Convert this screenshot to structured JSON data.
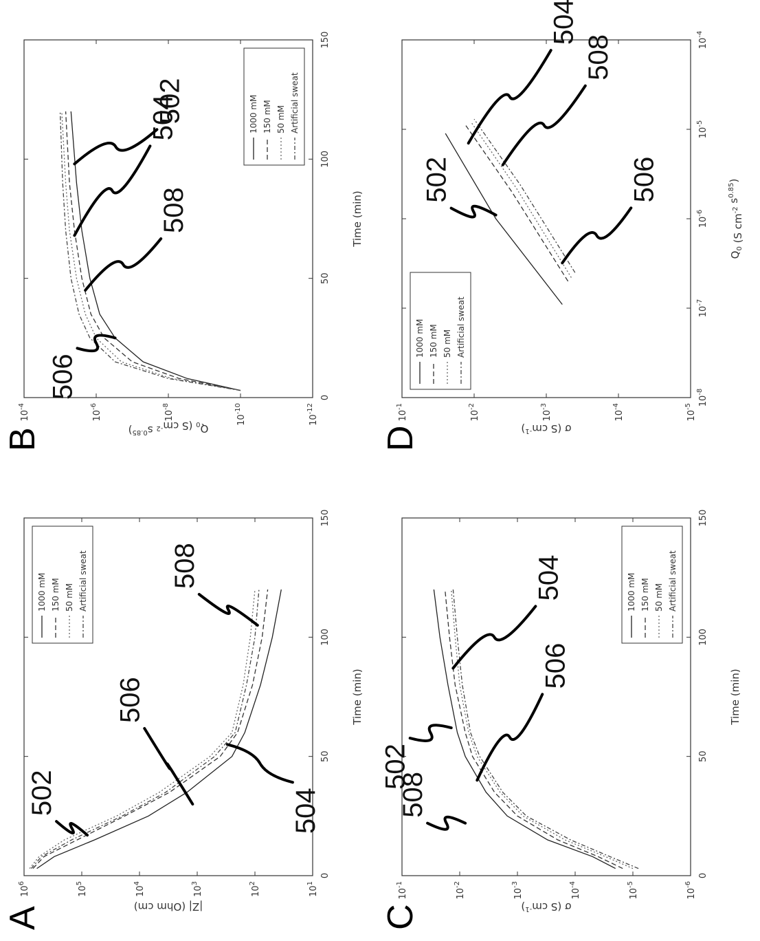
{
  "figure": {
    "panels": [
      {
        "letter": "A"
      },
      {
        "letter": "B"
      },
      {
        "letter": "C"
      },
      {
        "letter": "D"
      }
    ]
  },
  "chart_data": [
    {
      "panel": "A",
      "type": "line",
      "xlabel": "Time (min)",
      "ylabel": "|Z| (Ohm cm)",
      "xlim": [
        0,
        150
      ],
      "ylim": [
        10,
        1000000
      ],
      "y_scale": "log",
      "x_ticks": [
        "0",
        "50",
        "100",
        "150"
      ],
      "y_ticks": [
        "10^1",
        "10^2",
        "10^3",
        "10^4",
        "10^5",
        "10^6"
      ],
      "legend": [
        "1000 mM",
        "150 mM",
        "50 mM",
        "Artificial sweat"
      ],
      "legend_position": "top-right",
      "series": [
        {
          "name": "1000 mM",
          "x": [
            3,
            8,
            15,
            25,
            35,
            50,
            60,
            80,
            100,
            120
          ],
          "y": [
            600000,
            300000,
            60000,
            7000,
            1500,
            250,
            150,
            80,
            50,
            35
          ]
        },
        {
          "name": "150 mM",
          "x": [
            3,
            8,
            15,
            25,
            35,
            50,
            60,
            80,
            100,
            120
          ],
          "y": [
            700000,
            450000,
            120000,
            18000,
            3000,
            400,
            200,
            110,
            75,
            60
          ]
        },
        {
          "name": "50 mM",
          "x": [
            3,
            8,
            15,
            25,
            35,
            50,
            60,
            80,
            100,
            120
          ],
          "y": [
            800000,
            550000,
            200000,
            25000,
            4500,
            600,
            250,
            160,
            120,
            100
          ]
        },
        {
          "name": "Artificial sweat",
          "x": [
            3,
            8,
            15,
            25,
            35,
            50,
            60,
            80,
            100,
            120
          ],
          "y": [
            750000,
            500000,
            150000,
            20000,
            3500,
            500,
            220,
            140,
            100,
            85
          ]
        }
      ],
      "callouts": [
        "502",
        "506",
        "504",
        "508"
      ]
    },
    {
      "panel": "B",
      "type": "line",
      "xlabel": "Time (min)",
      "ylabel": "Q0 (S cm-2 s0.85)",
      "xlim": [
        0,
        150
      ],
      "ylim": [
        1e-12,
        0.0001
      ],
      "y_scale": "log",
      "x_ticks": [
        "0",
        "50",
        "100",
        "150"
      ],
      "y_ticks": [
        "10^-12",
        "10^-10",
        "10^-8",
        "10^-6",
        "10^-4"
      ],
      "legend": [
        "1000 mM",
        "150 mM",
        "50 mM",
        "Artificial sweat"
      ],
      "legend_position": "bottom-right",
      "series": [
        {
          "name": "1000 mM",
          "x": [
            3,
            8,
            15,
            25,
            35,
            50,
            70,
            90,
            120
          ],
          "y": [
            1e-10,
            3e-09,
            5e-08,
            3e-07,
            8e-07,
            1.5e-06,
            2.5e-06,
            3.5e-06,
            5e-06
          ]
        },
        {
          "name": "150 mM",
          "x": [
            3,
            8,
            15,
            25,
            35,
            50,
            70,
            90,
            120
          ],
          "y": [
            1e-10,
            5e-09,
            1e-07,
            6e-07,
            1.4e-06,
            2.5e-06,
            4e-06,
            5.5e-06,
            7e-06
          ]
        },
        {
          "name": "50 mM",
          "x": [
            3,
            8,
            15,
            25,
            35,
            50,
            70,
            90,
            120
          ],
          "y": [
            1e-10,
            8e-09,
            2e-07,
            1e-06,
            2e-06,
            3.5e-06,
            5.5e-06,
            7e-06,
            9e-06
          ]
        },
        {
          "name": "Artificial sweat",
          "x": [
            3,
            8,
            15,
            25,
            35,
            50,
            70,
            90,
            120
          ],
          "y": [
            1e-10,
            1e-08,
            3e-07,
            1.5e-06,
            3e-06,
            5e-06,
            7e-06,
            8.5e-06,
            1e-05
          ]
        }
      ],
      "callouts": [
        "506",
        "508",
        "504",
        "502"
      ]
    },
    {
      "panel": "C",
      "type": "line",
      "xlabel": "Time (min)",
      "ylabel": "σ (S cm-1)",
      "xlim": [
        0,
        150
      ],
      "ylim": [
        1e-06,
        0.1
      ],
      "y_scale": "log",
      "x_ticks": [
        "0",
        "50",
        "100",
        "150"
      ],
      "y_ticks": [
        "10^-6",
        "10^-5",
        "10^-4",
        "10^-3",
        "10^-2",
        "10^-1"
      ],
      "legend": [
        "1000 mM",
        "150 mM",
        "50 mM",
        "Artificial sweat"
      ],
      "legend_position": "bottom-right",
      "series": [
        {
          "name": "1000 mM",
          "x": [
            3,
            8,
            15,
            25,
            35,
            50,
            60,
            80,
            100,
            120
          ],
          "y": [
            2e-05,
            5e-05,
            0.0003,
            0.0015,
            0.0035,
            0.008,
            0.011,
            0.016,
            0.022,
            0.028
          ]
        },
        {
          "name": "150 mM",
          "x": [
            3,
            8,
            15,
            25,
            35,
            50,
            60,
            80,
            100,
            120
          ],
          "y": [
            1.5e-05,
            4e-05,
            0.0002,
            0.001,
            0.0025,
            0.006,
            0.008,
            0.012,
            0.015,
            0.018
          ]
        },
        {
          "name": "50 mM",
          "x": [
            3,
            8,
            15,
            25,
            35,
            50,
            60,
            80,
            100,
            120
          ],
          "y": [
            1e-05,
            3e-05,
            0.00015,
            0.0008,
            0.002,
            0.005,
            0.007,
            0.01,
            0.012,
            0.014
          ]
        },
        {
          "name": "Artificial sweat",
          "x": [
            3,
            8,
            15,
            25,
            35,
            50,
            60,
            80,
            100,
            120
          ],
          "y": [
            8e-06,
            2.5e-05,
            0.00012,
            0.0007,
            0.0018,
            0.0045,
            0.0065,
            0.009,
            0.011,
            0.013
          ]
        }
      ],
      "callouts": [
        "508",
        "502",
        "506",
        "504"
      ]
    },
    {
      "panel": "D",
      "type": "line",
      "xlabel": "Q0 (S cm-2 s0.85)",
      "ylabel": "σ (S cm-1)",
      "xlim": [
        1e-08,
        0.0001
      ],
      "ylim": [
        1e-05,
        0.1
      ],
      "x_scale": "log",
      "y_scale": "log",
      "x_ticks": [
        "10^-8",
        "10^-7",
        "10^-6",
        "10^-5",
        "10^-4"
      ],
      "y_ticks": [
        "10^-5",
        "10^-4",
        "10^-3",
        "10^-2",
        "10^-1"
      ],
      "legend": [
        "1000 mM",
        "150 mM",
        "50 mM",
        "Artificial sweat"
      ],
      "legend_position": "top-left",
      "series": [
        {
          "name": "1000 mM",
          "x": [
            1.1e-07,
            1e-06,
            9e-06
          ],
          "y": [
            0.0006,
            0.005,
            0.025
          ]
        },
        {
          "name": "150 mM",
          "x": [
            2e-07,
            2e-06,
            1.1e-05
          ],
          "y": [
            0.0005,
            0.003,
            0.013
          ]
        },
        {
          "name": "50 mM",
          "x": [
            2.2e-07,
            2.2e-06,
            1.2e-05
          ],
          "y": [
            0.00045,
            0.0026,
            0.011
          ]
        },
        {
          "name": "Artificial sweat",
          "x": [
            2.5e-07,
            2.4e-06,
            1.3e-05
          ],
          "y": [
            0.0004,
            0.0023,
            0.01
          ]
        }
      ],
      "callouts": [
        "502",
        "506",
        "508",
        "504"
      ]
    }
  ]
}
